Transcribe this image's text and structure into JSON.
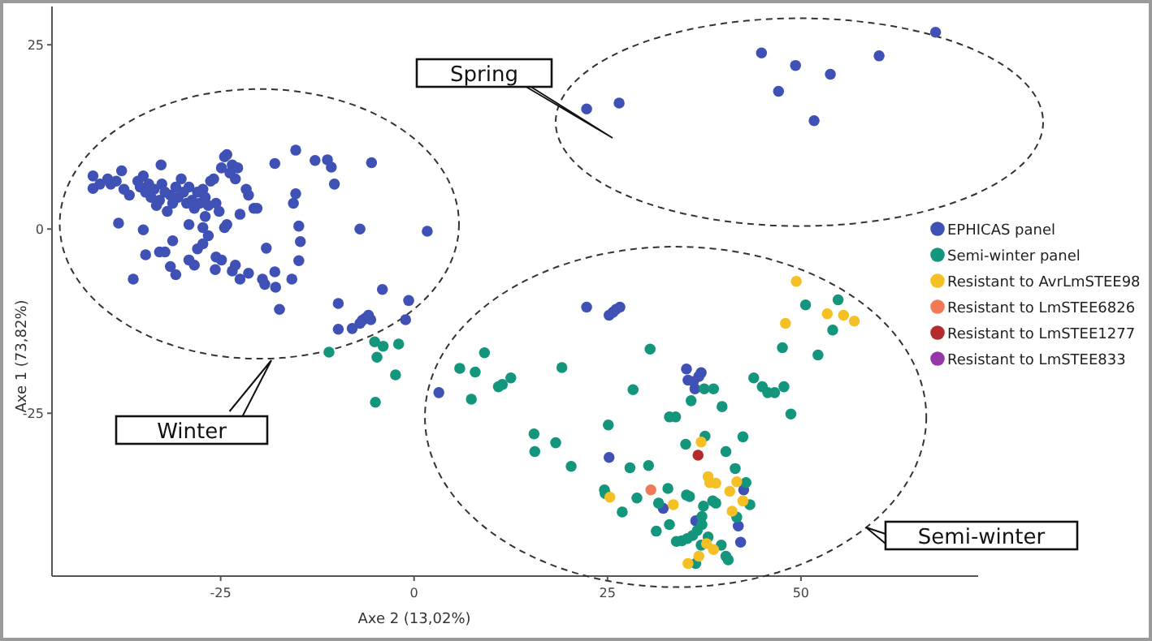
{
  "chart_data": {
    "type": "scatter",
    "xlabel": "Axe 2 (13,02%)",
    "ylabel": "Axe 1 (73,82%)",
    "xlim": [
      -46.8,
      72.9
    ],
    "ylim": [
      -47.1,
      30.2
    ],
    "xticks": [
      -25,
      0,
      25,
      50
    ],
    "yticks": [
      -25,
      0,
      25
    ],
    "grid": false,
    "legend": "right",
    "marker": "circle",
    "annotations": [
      "Winter",
      "Spring",
      "Semi-winter"
    ],
    "series": [
      {
        "name": "EPHICAS panel",
        "color": "#3f51b5",
        "x": [
          -41.5,
          -41.5,
          -40.6,
          -39.6,
          -39.2,
          -38.5,
          -37.8,
          -37.5,
          -36.8,
          -35.7,
          -35.4,
          -35.0,
          -34.7,
          -34.3,
          -34.0,
          -33.6,
          -33.3,
          -32.9,
          -32.6,
          -32.2,
          -31.9,
          -31.5,
          -31.2,
          -30.8,
          -30.5,
          -30.1,
          -29.8,
          -29.4,
          -29.1,
          -28.7,
          -28.4,
          -28.0,
          -27.7,
          -27.3,
          -27.0,
          -26.6,
          -26.3,
          -25.9,
          -25.6,
          -25.2,
          -24.9,
          -24.5,
          -24.2,
          -23.8,
          -23.5,
          -23.1,
          -22.8,
          -22.5,
          -21.7,
          -21.4,
          -20.7,
          -32.7,
          -38.2,
          -35.0,
          -31.2,
          -34.7,
          -32.9,
          -32.2,
          -31.5,
          -30.8,
          -29.1,
          -28.4,
          -28.0,
          -27.3,
          -26.6,
          -25.6,
          -24.9,
          -24.5,
          -24.2,
          -25.7,
          -23.5,
          -23.1,
          -22.5,
          -21.4,
          -19.6,
          -19.3,
          -17.9,
          -18.0,
          -19.1,
          -20.3,
          -18.0,
          -17.4,
          -15.8,
          -14.9,
          -14.7,
          -14.9,
          -15.6,
          -15.3,
          -15.3,
          -12.8,
          -11.2,
          -10.7,
          -10.3,
          -7.0,
          -5.5,
          1.7,
          -4.1,
          -9.8,
          -9.8,
          -8.0,
          -7.0,
          -6.7,
          -6.3,
          -5.9,
          -5.6,
          -1.1,
          -0.7,
          -36.3,
          -29.1,
          -27.3,
          -27.0,
          3.2,
          22.3,
          26.5,
          44.9,
          49.3,
          53.8,
          47.1,
          51.7,
          60.1,
          67.4,
          22.3,
          25.2,
          25.7,
          26.1,
          26.6,
          35.2,
          35.4,
          36.1,
          36.3,
          36.8,
          37.1,
          25.2,
          32.2,
          36.4,
          42.6,
          41.9,
          42.2
        ],
        "values": [
          7.2,
          5.5,
          6.1,
          6.8,
          6.1,
          6.5,
          7.9,
          5.4,
          4.6,
          6.5,
          5.7,
          7.2,
          5.0,
          6.1,
          4.3,
          5.4,
          3.2,
          3.9,
          6.1,
          5.0,
          2.4,
          4.6,
          3.5,
          5.7,
          4.3,
          6.8,
          5.0,
          3.5,
          5.7,
          3.9,
          2.8,
          5.0,
          3.5,
          5.4,
          4.3,
          3.2,
          6.5,
          6.8,
          3.5,
          2.4,
          8.3,
          9.8,
          10.1,
          7.6,
          8.7,
          6.8,
          8.3,
          2.0,
          5.4,
          4.6,
          2.8,
          8.7,
          0.8,
          -0.1,
          -1.6,
          -3.5,
          -3.1,
          -3.1,
          -5.1,
          -6.2,
          -4.2,
          -4.9,
          -2.7,
          -2.0,
          -0.9,
          -3.8,
          -4.2,
          0.2,
          0.6,
          -5.5,
          -5.7,
          -4.9,
          -6.8,
          -6.0,
          -6.8,
          -7.5,
          -7.9,
          -5.8,
          -2.6,
          2.8,
          8.9,
          -10.9,
          -6.8,
          -4.3,
          -1.7,
          0.4,
          3.5,
          4.8,
          10.7,
          9.3,
          9.4,
          8.4,
          6.1,
          0.0,
          9.0,
          -0.3,
          -8.2,
          -10.1,
          -13.6,
          -13.5,
          -12.8,
          -12.4,
          -12.1,
          -11.7,
          -12.3,
          -12.3,
          -9.7,
          -6.8,
          0.6,
          0.2,
          1.7,
          -22.2,
          16.3,
          17.1,
          23.9,
          22.2,
          21.0,
          18.7,
          14.7,
          23.5,
          26.7,
          -10.6,
          -11.7,
          -11.3,
          -10.9,
          -10.6,
          -19.0,
          -20.5,
          -20.7,
          -21.7,
          -20.0,
          -19.5,
          -31.0,
          -37.9,
          -39.6,
          -35.4,
          -40.3,
          -42.5
        ]
      },
      {
        "name": "Semi-winter panel",
        "color": "#14967c",
        "x": [
          -11.0,
          -5.1,
          -4.0,
          -2.0,
          -4.8,
          -5.0,
          -2.4,
          5.9,
          7.9,
          9.1,
          7.4,
          10.9,
          11.4,
          12.5,
          19.1,
          15.5,
          15.6,
          18.3,
          20.3,
          25.1,
          24.6,
          24.7,
          26.9,
          28.3,
          27.9,
          28.8,
          30.3,
          30.5,
          31.3,
          31.6,
          32.8,
          33.0,
          33.0,
          33.8,
          35.1,
          35.2,
          35.6,
          35.8,
          37.5,
          38.7,
          37.6,
          39.8,
          40.3,
          41.5,
          42.5,
          42.9,
          43.4,
          39.0,
          38.6,
          37.4,
          37.2,
          37.2,
          36.6,
          36.0,
          35.3,
          34.6,
          33.9,
          37.1,
          38.0,
          39.7,
          40.3,
          40.6,
          36.4,
          41.7,
          43.9,
          45.0,
          45.7,
          46.6,
          47.8,
          48.7,
          47.6,
          50.6,
          52.2,
          54.1,
          54.8
        ],
        "values": [
          -16.7,
          -15.3,
          -15.9,
          -15.6,
          -17.4,
          -23.5,
          -19.8,
          -18.9,
          -19.4,
          -16.8,
          -23.1,
          -21.4,
          -21.1,
          -20.2,
          -18.8,
          -27.8,
          -30.2,
          -29.0,
          -32.2,
          -26.6,
          -35.4,
          -35.9,
          -38.4,
          -21.8,
          -32.4,
          -36.5,
          -32.1,
          -16.3,
          -41.0,
          -37.2,
          -35.2,
          -40.1,
          -25.5,
          -25.5,
          -29.2,
          -36.1,
          -36.3,
          -23.3,
          -21.7,
          -21.7,
          -28.1,
          -24.1,
          -30.2,
          -32.5,
          -28.2,
          -34.4,
          -37.4,
          -37.2,
          -36.9,
          -37.6,
          -39.0,
          -40.1,
          -40.9,
          -41.6,
          -42.0,
          -42.3,
          -42.4,
          -42.9,
          -41.8,
          -42.9,
          -44.4,
          -44.9,
          -45.4,
          -39.1,
          -20.2,
          -21.4,
          -22.2,
          -22.2,
          -21.4,
          -25.1,
          -16.1,
          -10.3,
          -17.1,
          -13.7,
          -9.6
        ]
      },
      {
        "name": "Resistant to AvrLmSTEE98",
        "color": "#f5bf26",
        "x": [
          49.4,
          48.0,
          53.4,
          55.5,
          56.9,
          37.1,
          38.0,
          38.2,
          39.0,
          41.7,
          40.8,
          42.5,
          41.1,
          33.5,
          25.3,
          37.8,
          38.7,
          36.8,
          35.4
        ],
        "values": [
          -7.1,
          -12.8,
          -11.5,
          -11.7,
          -12.5,
          -28.9,
          -33.6,
          -34.4,
          -34.5,
          -34.3,
          -35.6,
          -36.9,
          -38.3,
          -37.4,
          -36.4,
          -42.7,
          -43.5,
          -44.4,
          -45.4
        ]
      },
      {
        "name": "Resistant to LmSTEE6826",
        "color": "#f07a55",
        "x": [
          30.6
        ],
        "values": [
          -35.4
        ]
      },
      {
        "name": "Resistant to LmSTEE1277",
        "color": "#b52a2a",
        "x": [
          36.7
        ],
        "values": [
          -30.7
        ]
      },
      {
        "name": "Resistant to LmSTEE833",
        "color": "#9437a8"
      }
    ]
  }
}
